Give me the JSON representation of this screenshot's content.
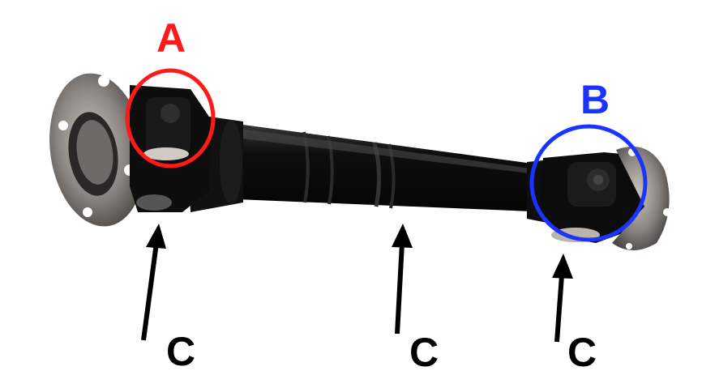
{
  "labels": {
    "a": {
      "text": "A",
      "color": "#ff1a1a"
    },
    "b": {
      "text": "B",
      "color": "#1a33ff"
    },
    "c1": {
      "text": "C",
      "color": "#000000"
    },
    "c2": {
      "text": "C",
      "color": "#000000"
    },
    "c3": {
      "text": "C",
      "color": "#000000"
    }
  },
  "markers": {
    "circle_a_color": "#ff1a1a",
    "circle_b_color": "#1a33ff",
    "arrow_color": "#000000"
  },
  "part": {
    "body_color": "#0b0b0b",
    "metal_color": "#8a8580"
  }
}
